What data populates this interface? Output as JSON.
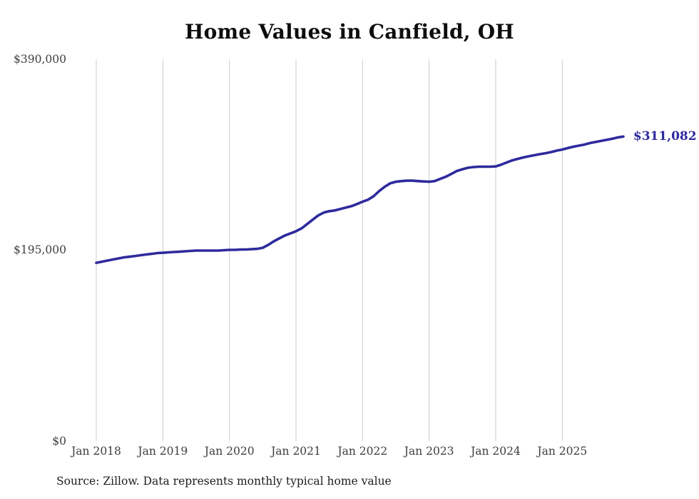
{
  "chart": {
    "title": "Home Values in Canfield, OH",
    "source": "Source: Zillow. Data represents monthly typical home value",
    "end_label": "$311,082",
    "colors": {
      "line": "#2e2a9d",
      "annotation": "#2e2a9d",
      "grid": "#cccccc",
      "title_text": "#0d0d0d",
      "axis_text": "#3d3d3d",
      "source_text": "#1c1c1c"
    }
  },
  "chart_data": {
    "type": "line",
    "title": "Home Values in Canfield, OH",
    "series_name": "Typical home value",
    "xlabel": "",
    "ylabel": "",
    "ylim": [
      0,
      390000
    ],
    "grid": "vertical-only",
    "legend": "none",
    "annotation": "$311,082",
    "final_value": 311082,
    "source": "Source: Zillow. Data represents monthly typical home value",
    "y_ticks": [
      {
        "label": "$390,000",
        "value": 390000
      },
      {
        "label": "$195,000",
        "value": 195000
      },
      {
        "label": "$0",
        "value": 0
      }
    ],
    "x_tick_labels": [
      "Jan 2018",
      "Jan 2019",
      "Jan 2020",
      "Jan 2021",
      "Jan 2022",
      "Jan 2023",
      "Jan 2024",
      "Jan 2025"
    ],
    "months": [
      "2018-01",
      "2018-02",
      "2018-03",
      "2018-04",
      "2018-05",
      "2018-06",
      "2018-07",
      "2018-08",
      "2018-09",
      "2018-10",
      "2018-11",
      "2018-12",
      "2019-01",
      "2019-02",
      "2019-03",
      "2019-04",
      "2019-05",
      "2019-06",
      "2019-07",
      "2019-08",
      "2019-09",
      "2019-10",
      "2019-11",
      "2019-12",
      "2020-01",
      "2020-02",
      "2020-03",
      "2020-04",
      "2020-05",
      "2020-06",
      "2020-07",
      "2020-08",
      "2020-09",
      "2020-10",
      "2020-11",
      "2020-12",
      "2021-01",
      "2021-02",
      "2021-03",
      "2021-04",
      "2021-05",
      "2021-06",
      "2021-07",
      "2021-08",
      "2021-09",
      "2021-10",
      "2021-11",
      "2021-12",
      "2022-01",
      "2022-02",
      "2022-03",
      "2022-04",
      "2022-05",
      "2022-06",
      "2022-07",
      "2022-08",
      "2022-09",
      "2022-10",
      "2022-11",
      "2022-12",
      "2023-01",
      "2023-02",
      "2023-03",
      "2023-04",
      "2023-05",
      "2023-06",
      "2023-07",
      "2023-08",
      "2023-09",
      "2023-10",
      "2023-11",
      "2023-12",
      "2024-01",
      "2024-02",
      "2024-03",
      "2024-04",
      "2024-05",
      "2024-06",
      "2024-07",
      "2024-08",
      "2024-09",
      "2024-10",
      "2024-11",
      "2024-12",
      "2025-01",
      "2025-02",
      "2025-03",
      "2025-04",
      "2025-05",
      "2025-06",
      "2025-07",
      "2025-08",
      "2025-09",
      "2025-10",
      "2025-11",
      "2025-12"
    ],
    "values": [
      182200,
      183300,
      184400,
      185500,
      186600,
      187700,
      188400,
      189100,
      189900,
      190600,
      191300,
      192100,
      192400,
      192800,
      193200,
      193500,
      193900,
      194300,
      194600,
      194600,
      194600,
      194600,
      194600,
      195000,
      195400,
      195400,
      195700,
      195700,
      196100,
      196400,
      197500,
      200500,
      204100,
      207100,
      210000,
      212200,
      214400,
      217300,
      221700,
      226100,
      230500,
      233400,
      234900,
      235600,
      237100,
      238500,
      240000,
      242200,
      244500,
      246600,
      250200,
      255400,
      259800,
      263400,
      264900,
      265600,
      266000,
      266000,
      265600,
      265200,
      264900,
      265600,
      267800,
      270000,
      272900,
      275900,
      277700,
      279200,
      279900,
      280300,
      280300,
      280300,
      280600,
      282400,
      284600,
      286800,
      288300,
      289800,
      290900,
      292000,
      293100,
      294100,
      295200,
      296700,
      297800,
      299300,
      300700,
      301800,
      302900,
      304400,
      305500,
      306600,
      307700,
      308800,
      310200,
      311082
    ]
  }
}
